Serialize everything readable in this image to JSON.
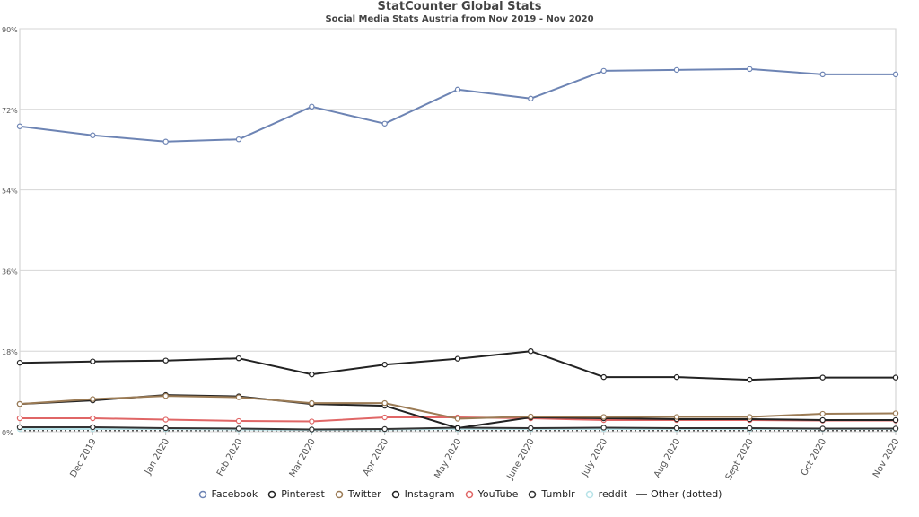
{
  "chart_data": {
    "type": "line",
    "title": "StatCounter Global Stats",
    "subtitle": "Social Media Stats Austria from Nov 2019 - Nov 2020",
    "xlabel": "",
    "ylabel": "",
    "categories": [
      "Nov 2019",
      "Dec 2019",
      "Jan 2020",
      "Feb 2020",
      "Mar 2020",
      "Apr 2020",
      "May 2020",
      "June 2020",
      "July 2020",
      "Aug 2020",
      "Sept 2020",
      "Oct 2020",
      "Nov 2020"
    ],
    "x_tick_labels": [
      "Dec 2019",
      "Jan 2020",
      "Feb 2020",
      "Mar 2020",
      "Apr 2020",
      "May 2020",
      "June 2020",
      "July 2020",
      "Aug 2020",
      "Sept 2020",
      "Oct 2020",
      "Nov 2020"
    ],
    "ylim": [
      0,
      90
    ],
    "y_ticks": [
      0,
      18,
      36,
      54,
      72,
      90
    ],
    "y_tick_labels": [
      "0%",
      "18%",
      "36%",
      "54%",
      "72%",
      "90%"
    ],
    "grid": true,
    "legend_position": "bottom",
    "series": [
      {
        "name": "Facebook",
        "color": "#6d84b4",
        "values": [
          68.2,
          66.2,
          64.8,
          65.3,
          72.6,
          68.8,
          76.4,
          74.4,
          80.6,
          80.8,
          81.0,
          79.8,
          79.8
        ]
      },
      {
        "name": "Pinterest",
        "color": "#222222",
        "values": [
          15.4,
          15.7,
          15.9,
          16.4,
          12.8,
          15.0,
          16.3,
          18.0,
          12.2,
          12.2,
          11.6,
          12.1,
          12.1
        ]
      },
      {
        "name": "Twitter",
        "color": "#9b7b55",
        "values": [
          6.2,
          7.3,
          8.0,
          7.7,
          6.4,
          6.4,
          2.9,
          3.4,
          3.3,
          3.3,
          3.3,
          4.0,
          4.1
        ]
      },
      {
        "name": "Instagram",
        "color": "#222222",
        "values": [
          6.2,
          7.0,
          8.2,
          7.9,
          6.2,
          5.8,
          0.8,
          3.2,
          3.0,
          2.8,
          2.8,
          2.6,
          2.6
        ]
      },
      {
        "name": "YouTube",
        "color": "#e06666",
        "values": [
          3.0,
          3.0,
          2.7,
          2.4,
          2.3,
          3.2,
          3.2,
          3.0,
          2.6,
          2.6,
          2.6,
          2.5,
          2.5
        ]
      },
      {
        "name": "Tumblr",
        "color": "#333333",
        "values": [
          1.0,
          1.0,
          0.8,
          0.7,
          0.5,
          0.6,
          0.9,
          0.8,
          0.9,
          0.8,
          0.8,
          0.7,
          0.7
        ]
      },
      {
        "name": "reddit",
        "color": "#b7e3e8",
        "values": [
          0.6,
          0.6,
          0.6,
          0.5,
          0.4,
          0.5,
          0.6,
          0.6,
          0.6,
          0.6,
          0.6,
          0.6,
          0.6
        ]
      },
      {
        "name": "Other (dotted)",
        "color": "#555555",
        "dotted": true,
        "values": [
          0.3,
          0.3,
          0.3,
          0.3,
          0.3,
          0.3,
          0.3,
          0.3,
          0.3,
          0.3,
          0.3,
          0.3,
          0.3
        ]
      }
    ]
  }
}
